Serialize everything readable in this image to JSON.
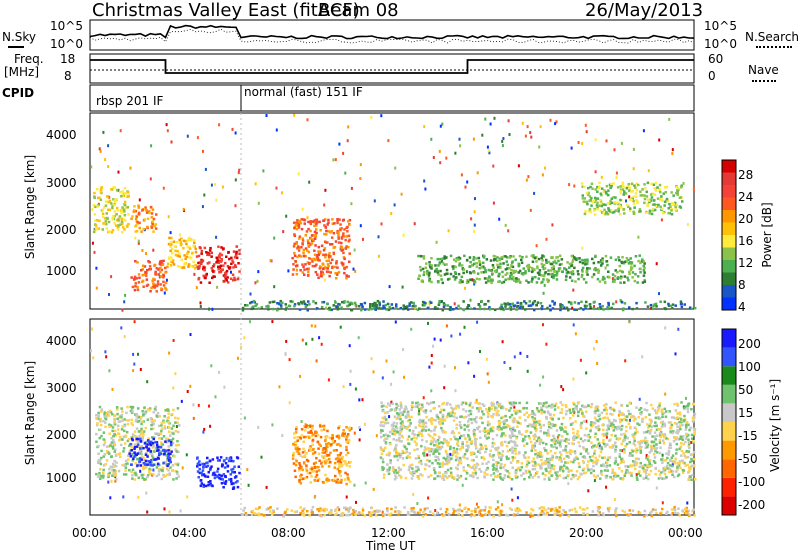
{
  "header": {
    "station": "Christmas Valley East (fitACF)",
    "beam": "Beam 08",
    "date": "26/May/2013"
  },
  "nsky": {
    "label": "N.Sky",
    "ticks": [
      "10^5",
      "10^0"
    ]
  },
  "nsearch": {
    "label": "N.Search",
    "ticks": [
      "10^5",
      "10^0"
    ]
  },
  "freq": {
    "label_line1": "Freq.",
    "label_line2": "[MHz]",
    "ticks": [
      "18",
      "8"
    ]
  },
  "nave": {
    "label": "Nave",
    "ticks": [
      "60",
      "0"
    ]
  },
  "cpid": {
    "label": "CPID",
    "modes": [
      {
        "name": "rbsp 201 IF",
        "start_hour": 0,
        "end_hour": 6
      },
      {
        "name": "normal (fast) 151 IF",
        "start_hour": 6,
        "end_hour": 24
      }
    ]
  },
  "power_panel": {
    "ylabel": "Slant Range [km]",
    "yticks": [
      "4000",
      "3000",
      "2000",
      "1000"
    ],
    "colorbar_label": "Power [dB]",
    "colorbar_ticks": [
      "28",
      "24",
      "20",
      "16",
      "12",
      "8",
      "4"
    ],
    "colors": [
      "#0033ff",
      "#1a56c8",
      "#2e7d32",
      "#4caf50",
      "#8bc34a",
      "#ffeb3b",
      "#ffc107",
      "#ff9800",
      "#ff5722",
      "#f44336",
      "#e53935",
      "#d50000"
    ]
  },
  "velocity_panel": {
    "ylabel": "Slant Range [km]",
    "yticks": [
      "4000",
      "3000",
      "2000",
      "1000"
    ],
    "colorbar_label": "Velocity [m s⁻¹]",
    "colorbar_ticks": [
      "200",
      "100",
      "50",
      "15",
      "-15",
      "-50",
      "-100",
      "-200"
    ],
    "colors": [
      "#1a1aff",
      "#3355ff",
      "#1a8a1a",
      "#6fc36f",
      "#c8c8c8",
      "#ffd24d",
      "#ff9900",
      "#ff6600",
      "#ff2200",
      "#dd0000"
    ]
  },
  "xaxis": {
    "label": "Time UT",
    "ticks": [
      "00:00",
      "04:00",
      "08:00",
      "12:00",
      "16:00",
      "20:00",
      "00:00"
    ]
  },
  "chart_data": {
    "type": "heatmap",
    "title": "Christmas Valley East (fitACF) Beam 08 26/May/2013",
    "xlabel": "Time UT",
    "ylabel": "Slant Range [km]",
    "xlim": [
      0,
      24
    ],
    "ylim": [
      200,
      4500
    ],
    "panels": [
      {
        "name": "Power [dB]",
        "range": [
          0,
          30
        ],
        "regions": [
          {
            "t0": 0.1,
            "t1": 1.5,
            "r0": 1900,
            "r1": 2900,
            "level": 14
          },
          {
            "t0": 1.6,
            "t1": 2.6,
            "r0": 1900,
            "r1": 2500,
            "level": 18
          },
          {
            "t0": 1.6,
            "t1": 3.0,
            "r0": 600,
            "r1": 1300,
            "level": 22
          },
          {
            "t0": 3.0,
            "t1": 4.2,
            "r0": 1100,
            "r1": 1800,
            "level": 16
          },
          {
            "t0": 4.2,
            "t1": 5.9,
            "r0": 800,
            "r1": 1600,
            "level": 26
          },
          {
            "t0": 8.0,
            "t1": 10.3,
            "r0": 900,
            "r1": 2200,
            "level": 22
          },
          {
            "t0": 13.0,
            "t1": 22.0,
            "r0": 800,
            "r1": 1400,
            "level": 8
          },
          {
            "t0": 19.5,
            "t1": 23.5,
            "r0": 2300,
            "r1": 3000,
            "level": 10
          },
          {
            "t0": 6.0,
            "t1": 24.0,
            "r0": 200,
            "r1": 400,
            "level": 6
          }
        ]
      },
      {
        "name": "Velocity [m s⁻¹]",
        "range": [
          -200,
          200
        ],
        "regions": [
          {
            "t0": 0.2,
            "t1": 3.5,
            "r0": 1000,
            "r1": 2600,
            "level": 0
          },
          {
            "t0": 1.5,
            "t1": 3.2,
            "r0": 1300,
            "r1": 1900,
            "level": 220
          },
          {
            "t0": 4.2,
            "t1": 5.9,
            "r0": 800,
            "r1": 1500,
            "level": 220
          },
          {
            "t0": 8.0,
            "t1": 10.3,
            "r0": 900,
            "r1": 2200,
            "level": -60
          },
          {
            "t0": 11.5,
            "t1": 24.0,
            "r0": 1000,
            "r1": 2700,
            "level": 0
          },
          {
            "t0": 6.0,
            "t1": 24.0,
            "r0": 200,
            "r1": 400,
            "level": -20
          }
        ]
      }
    ]
  }
}
